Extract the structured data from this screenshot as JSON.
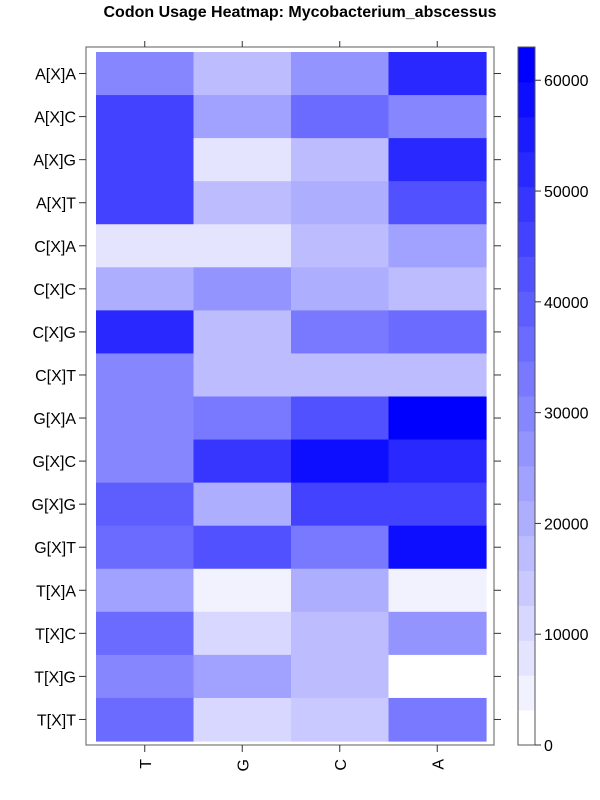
{
  "chart_data": {
    "type": "heatmap",
    "title": "Codon Usage Heatmap: Mycobacterium_abscessus",
    "xlabel": "",
    "ylabel": "",
    "columns": [
      "T",
      "G",
      "C",
      "A"
    ],
    "rows": [
      "A[X]A",
      "A[X]C",
      "A[X]G",
      "A[X]T",
      "C[X]A",
      "C[X]C",
      "C[X]G",
      "C[X]T",
      "G[X]A",
      "G[X]C",
      "G[X]G",
      "G[X]T",
      "T[X]A",
      "T[X]C",
      "T[X]G",
      "T[X]T"
    ],
    "values": [
      [
        31000,
        16000,
        26000,
        53000
      ],
      [
        45000,
        23000,
        37000,
        31000
      ],
      [
        45000,
        9000,
        18000,
        51000
      ],
      [
        45000,
        18000,
        22000,
        43000
      ],
      [
        9000,
        9000,
        18000,
        25000
      ],
      [
        22000,
        27000,
        22000,
        16000
      ],
      [
        52000,
        17000,
        33000,
        35000
      ],
      [
        29000,
        18000,
        18000,
        18000
      ],
      [
        29000,
        34000,
        41000,
        63000
      ],
      [
        29000,
        50000,
        58000,
        51000
      ],
      [
        39000,
        22000,
        45000,
        45000
      ],
      [
        36000,
        42000,
        32000,
        58000
      ],
      [
        25000,
        6000,
        21000,
        6000
      ],
      [
        37000,
        10000,
        18000,
        26000
      ],
      [
        31000,
        23000,
        17000,
        0
      ],
      [
        36000,
        10000,
        13000,
        32000
      ]
    ],
    "colorbar": {
      "min": 0,
      "max": 63000,
      "ticks": [
        0,
        10000,
        20000,
        30000,
        40000,
        50000,
        60000
      ],
      "low_color": "#ffffff",
      "high_color": "#0000ff"
    }
  }
}
